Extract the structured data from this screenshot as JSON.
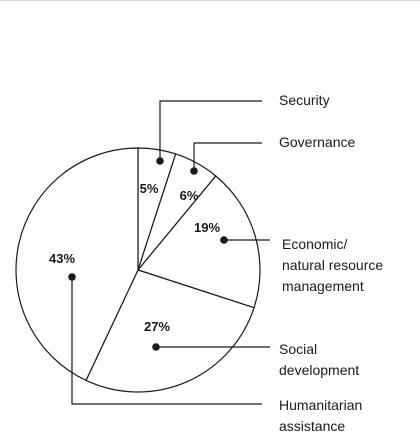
{
  "chart_data": {
    "type": "pie",
    "start_angle_deg": 0,
    "direction": "clockwise",
    "slices": [
      {
        "label": "Security",
        "value": 5,
        "pct_label": "5%"
      },
      {
        "label": "Governance",
        "value": 6,
        "pct_label": "6%"
      },
      {
        "label": "Economic/\nnatural resource\nmanagement",
        "value": 19,
        "pct_label": "19%"
      },
      {
        "label": "Social\ndevelopment",
        "value": 27,
        "pct_label": "27%"
      },
      {
        "label": "Humanitarian\nassistance",
        "value": 43,
        "pct_label": "43%"
      }
    ],
    "colors": {
      "fill": "#ffffff",
      "stroke": "#1a1a1a",
      "text": "#1a1a1a"
    }
  }
}
